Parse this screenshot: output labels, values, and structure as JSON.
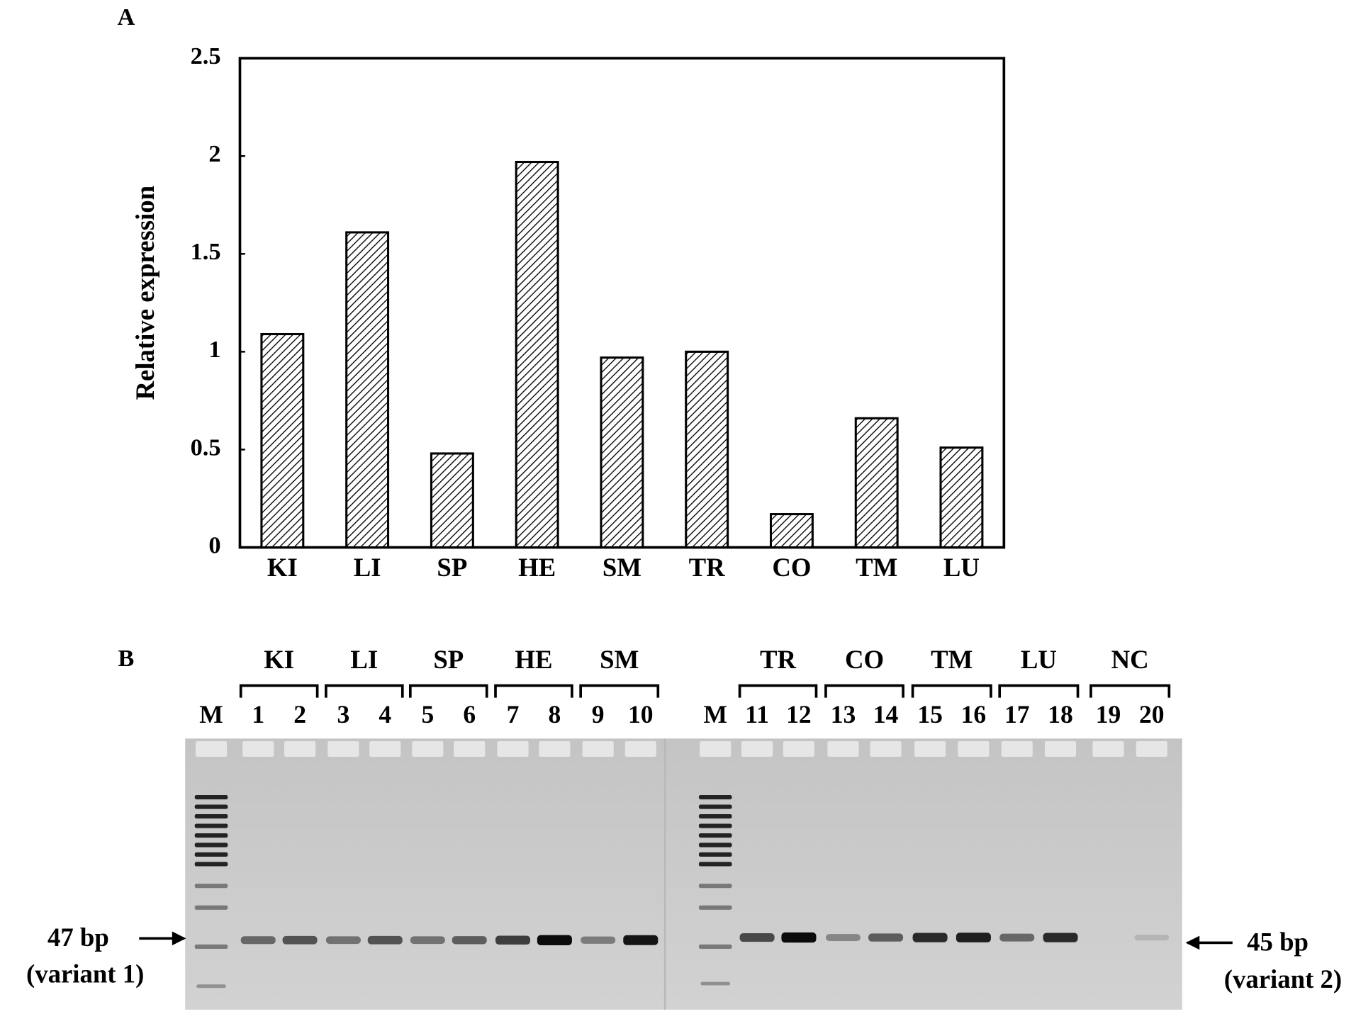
{
  "chart_data": {
    "type": "bar",
    "panel_label": "A",
    "y_label": "Relative expression",
    "categories": [
      "KI",
      "LI",
      "SP",
      "HE",
      "SM",
      "TR",
      "CO",
      "TM",
      "LU"
    ],
    "values": [
      1.09,
      1.61,
      0.48,
      1.97,
      0.97,
      1.0,
      0.17,
      0.66,
      0.51
    ],
    "ylim": [
      0,
      2.5
    ],
    "yticks": [
      0,
      0.5,
      1,
      1.5,
      2,
      2.5
    ],
    "hatch": "diagonal",
    "grid": false
  },
  "gel": {
    "panel_label": "B",
    "groups": [
      "KI",
      "LI",
      "SP",
      "HE",
      "SM",
      "TR",
      "CO",
      "TM",
      "LU",
      "NC"
    ],
    "lanes_left": [
      "M",
      "1",
      "2",
      "3",
      "4",
      "5",
      "6",
      "7",
      "8",
      "9",
      "10"
    ],
    "lanes_right": [
      "M",
      "11",
      "12",
      "13",
      "14",
      "15",
      "16",
      "17",
      "18",
      "19",
      "20"
    ],
    "marker_left": {
      "size": "47 bp",
      "variant": "(variant 1)"
    },
    "marker_right": {
      "size": "45 bp",
      "variant": "(variant 2)"
    }
  }
}
